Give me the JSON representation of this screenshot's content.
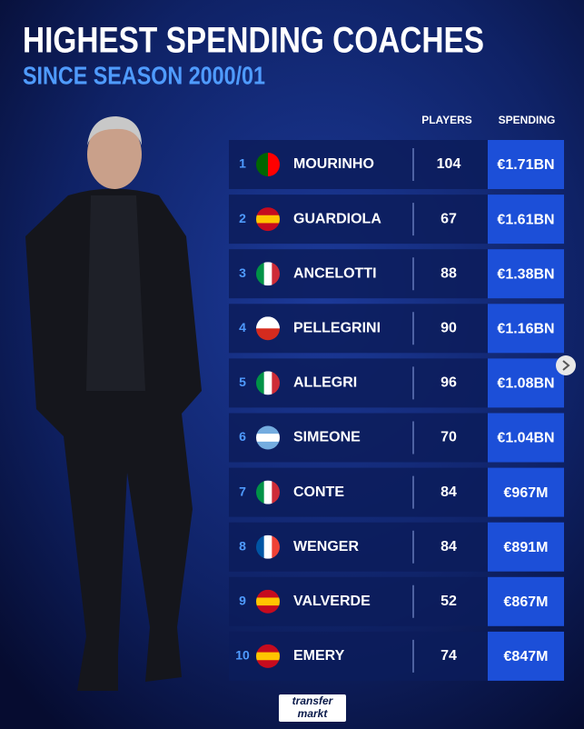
{
  "header": {
    "title": "HIGHEST SPENDING COACHES",
    "subtitle": "SINCE SEASON 2000/01"
  },
  "table": {
    "columns": [
      "PLAYERS",
      "SPENDING"
    ],
    "rows": [
      {
        "rank": 1,
        "name": "MOURINHO",
        "players": 104,
        "spending": "€1.71BN"
      },
      {
        "rank": 2,
        "name": "GUARDIOLA",
        "players": 67,
        "spending": "€1.61BN"
      },
      {
        "rank": 3,
        "name": "ANCELOTTI",
        "players": 88,
        "spending": "€1.38BN"
      },
      {
        "rank": 4,
        "name": "PELLEGRINI",
        "players": 90,
        "spending": "€1.16BN"
      },
      {
        "rank": 5,
        "name": "ALLEGRI",
        "players": 96,
        "spending": "€1.08BN"
      },
      {
        "rank": 6,
        "name": "SIMEONE",
        "players": 70,
        "spending": "€1.04BN"
      },
      {
        "rank": 7,
        "name": "CONTE",
        "players": 84,
        "spending": "€967M"
      },
      {
        "rank": 8,
        "name": "WENGER",
        "players": 84,
        "spending": "€891M"
      },
      {
        "rank": 9,
        "name": "VALVERDE",
        "players": 52,
        "spending": "€867M"
      },
      {
        "rank": 10,
        "name": "EMERY",
        "players": 74,
        "spending": "€847M"
      }
    ]
  },
  "logo": [
    "transfer",
    "markt"
  ]
}
